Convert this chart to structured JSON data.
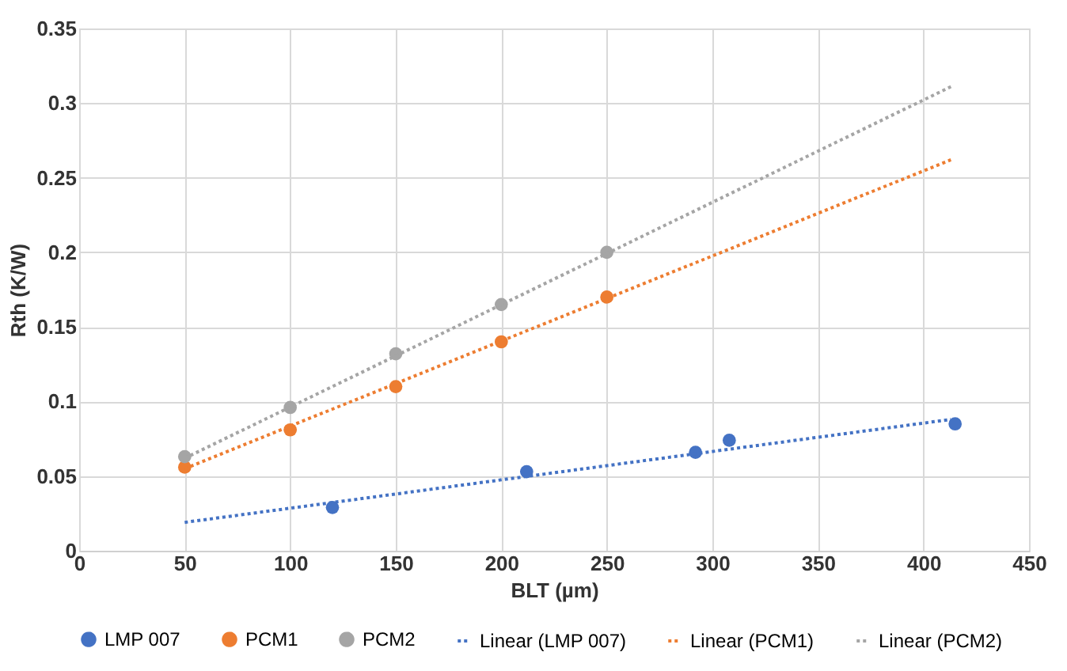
{
  "chart_data": {
    "type": "scatter",
    "marker": "circle",
    "xlabel": "BLT (µm)",
    "ylabel": "Rth (K/W)",
    "xlim": [
      0,
      450
    ],
    "xticks": [
      0,
      50,
      100,
      150,
      200,
      250,
      300,
      350,
      400,
      450
    ],
    "ylim": [
      0,
      0.35
    ],
    "yticks": [
      0,
      0.05,
      0.1,
      0.15,
      0.2,
      0.25,
      0.3,
      0.35
    ],
    "grid": true,
    "legend": "bottom",
    "series": [
      {
        "name": "LMP 007",
        "color": "#4472c4",
        "x": [
          120,
          212,
          292,
          308,
          415
        ],
        "values": [
          0.029,
          0.053,
          0.066,
          0.074,
          0.085
        ]
      },
      {
        "name": "PCM1",
        "color": "#ed7d31",
        "x": [
          50,
          100,
          150,
          200,
          250
        ],
        "values": [
          0.056,
          0.081,
          0.11,
          0.14,
          0.17
        ]
      },
      {
        "name": "PCM2",
        "color": "#a5a5a5",
        "x": [
          50,
          100,
          150,
          200,
          250
        ],
        "values": [
          0.063,
          0.096,
          0.132,
          0.165,
          0.2
        ]
      },
      {
        "name": "Linear (LMP 007)",
        "type": "line",
        "marker": "none",
        "line_style": "dotted",
        "color": "#4472c4",
        "x": [
          50,
          413
        ],
        "values": [
          0.019,
          0.088
        ]
      },
      {
        "name": "Linear (PCM1)",
        "type": "line",
        "marker": "none",
        "line_style": "dotted",
        "color": "#ed7d31",
        "x": [
          50,
          413
        ],
        "values": [
          0.055,
          0.262
        ]
      },
      {
        "name": "Linear (PCM2)",
        "type": "line",
        "marker": "none",
        "line_style": "dotted",
        "color": "#a5a5a5",
        "x": [
          50,
          413
        ],
        "values": [
          0.062,
          0.311
        ]
      }
    ]
  }
}
